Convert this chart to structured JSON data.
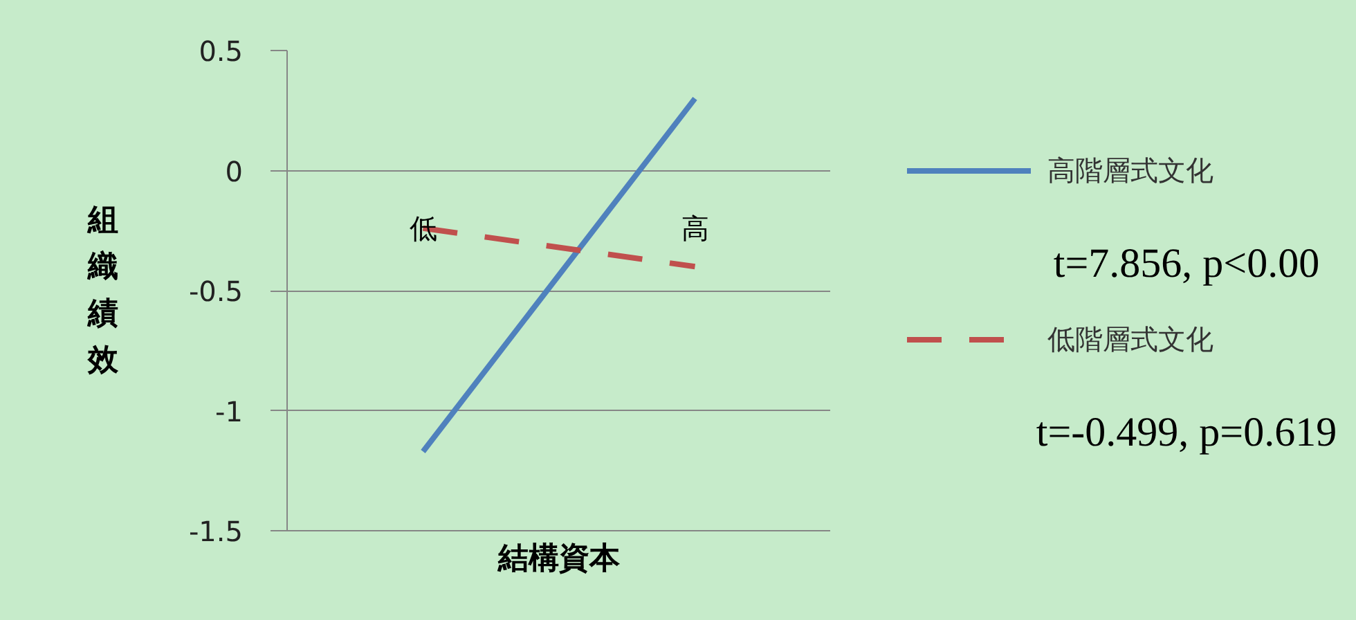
{
  "chart_data": {
    "type": "line",
    "xlabel": "結構資本",
    "ylabel": "組織績效",
    "categories": [
      "低",
      "高"
    ],
    "series": [
      {
        "name": "高階層式文化",
        "color": "#4f81bd",
        "values": [
          -1.17,
          0.3
        ],
        "line_style": "solid"
      },
      {
        "name": "低階層式文化",
        "color": "#c0504d",
        "values": [
          -0.24,
          -0.4
        ],
        "line_style": "dashed"
      }
    ],
    "ylim": [
      -1.5,
      0.5
    ],
    "yticks": [
      -1.5,
      -1,
      -0.5,
      0,
      0.5
    ],
    "grid": "y",
    "legend": "right",
    "annotations": [
      "t=7.856, p<0.00",
      "t=-0.499, p=0.619"
    ]
  }
}
